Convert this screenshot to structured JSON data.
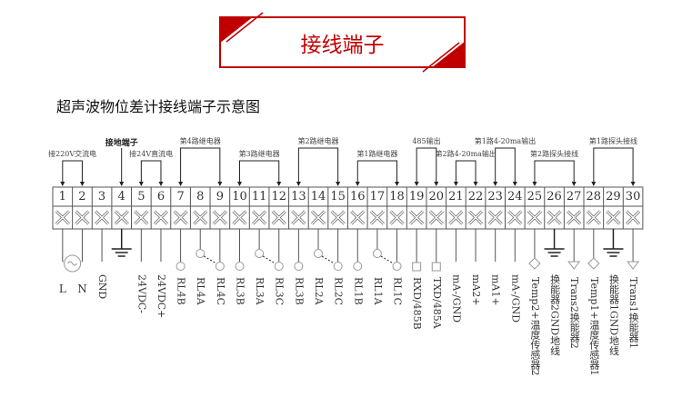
{
  "header": {
    "title": "接线端子",
    "accent": "#c00000"
  },
  "subtitle": "超声波物位差计接线端子示意图",
  "groups": [
    {
      "label": "接220V交流电",
      "from": 1,
      "to": 2,
      "level": "low"
    },
    {
      "label": "接地端子",
      "from": 4,
      "to": 4,
      "level": "high",
      "bold": true
    },
    {
      "label": "接24V直流电",
      "from": 5,
      "to": 6,
      "level": "low"
    },
    {
      "label": "第4路继电器",
      "from": 7,
      "to": 9,
      "level": "high"
    },
    {
      "label": "第3路继电器",
      "from": 10,
      "to": 12,
      "level": "low"
    },
    {
      "label": "第2路继电器",
      "from": 13,
      "to": 15,
      "level": "high"
    },
    {
      "label": "第1路继电器",
      "from": 16,
      "to": 18,
      "level": "low"
    },
    {
      "label": "485输出",
      "from": 19,
      "to": 20,
      "level": "high"
    },
    {
      "label": "第2路4-20ma输出",
      "from": 21,
      "to": 22,
      "level": "low"
    },
    {
      "label": "第1路4-20ma输出",
      "from": 23,
      "to": 24,
      "level": "high"
    },
    {
      "label": "第2路探头接线",
      "from": 25,
      "to": 27,
      "level": "low"
    },
    {
      "label": "第1路探头接线",
      "from": 28,
      "to": 30,
      "level": "high"
    }
  ],
  "terminals": [
    {
      "n": "1",
      "label": "L",
      "symbol": "ac"
    },
    {
      "n": "2",
      "label": "N",
      "symbol": "ac"
    },
    {
      "n": "3",
      "label": "GND",
      "symbol": "line"
    },
    {
      "n": "4",
      "label": "",
      "symbol": "ground"
    },
    {
      "n": "5",
      "label": "24VDC-",
      "symbol": "line"
    },
    {
      "n": "6",
      "label": "24VDC+",
      "symbol": "line"
    },
    {
      "n": "7",
      "label": "RL4B",
      "symbol": "circle"
    },
    {
      "n": "8",
      "label": "RL4A",
      "symbol": "switch"
    },
    {
      "n": "9",
      "label": "RL4C",
      "symbol": "circle"
    },
    {
      "n": "10",
      "label": "RL3B",
      "symbol": "circle"
    },
    {
      "n": "11",
      "label": "RL3A",
      "symbol": "switch"
    },
    {
      "n": "12",
      "label": "RL3C",
      "symbol": "circle"
    },
    {
      "n": "13",
      "label": "RL3B",
      "symbol": "circle"
    },
    {
      "n": "14",
      "label": "RL2A",
      "symbol": "switch"
    },
    {
      "n": "15",
      "label": "RL2C",
      "symbol": "circle"
    },
    {
      "n": "16",
      "label": "RL1B",
      "symbol": "circle"
    },
    {
      "n": "17",
      "label": "RL1A",
      "symbol": "switch"
    },
    {
      "n": "18",
      "label": "RL1C",
      "symbol": "circle"
    },
    {
      "n": "19",
      "label": "RXD/485B",
      "symbol": "square"
    },
    {
      "n": "20",
      "label": "TXD/485A",
      "symbol": "square"
    },
    {
      "n": "21",
      "label": "mA-/GND",
      "symbol": "line"
    },
    {
      "n": "22",
      "label": "mA2+",
      "symbol": "line"
    },
    {
      "n": "23",
      "label": "mA1+",
      "symbol": "line"
    },
    {
      "n": "24",
      "label": "mA-/GND",
      "symbol": "line"
    },
    {
      "n": "25",
      "label": "Temp2+温度传感器2",
      "symbol": "diamond"
    },
    {
      "n": "26",
      "label": "换能器2GND地线",
      "symbol": "ground"
    },
    {
      "n": "27",
      "label": "Trans2换能器2",
      "symbol": "triangle"
    },
    {
      "n": "28",
      "label": "Temp1+温度传感器1",
      "symbol": "diamond"
    },
    {
      "n": "29",
      "label": "换能器1GND地线",
      "symbol": "ground"
    },
    {
      "n": "30",
      "label": "Trans1换能器1",
      "symbol": "triangle"
    }
  ]
}
